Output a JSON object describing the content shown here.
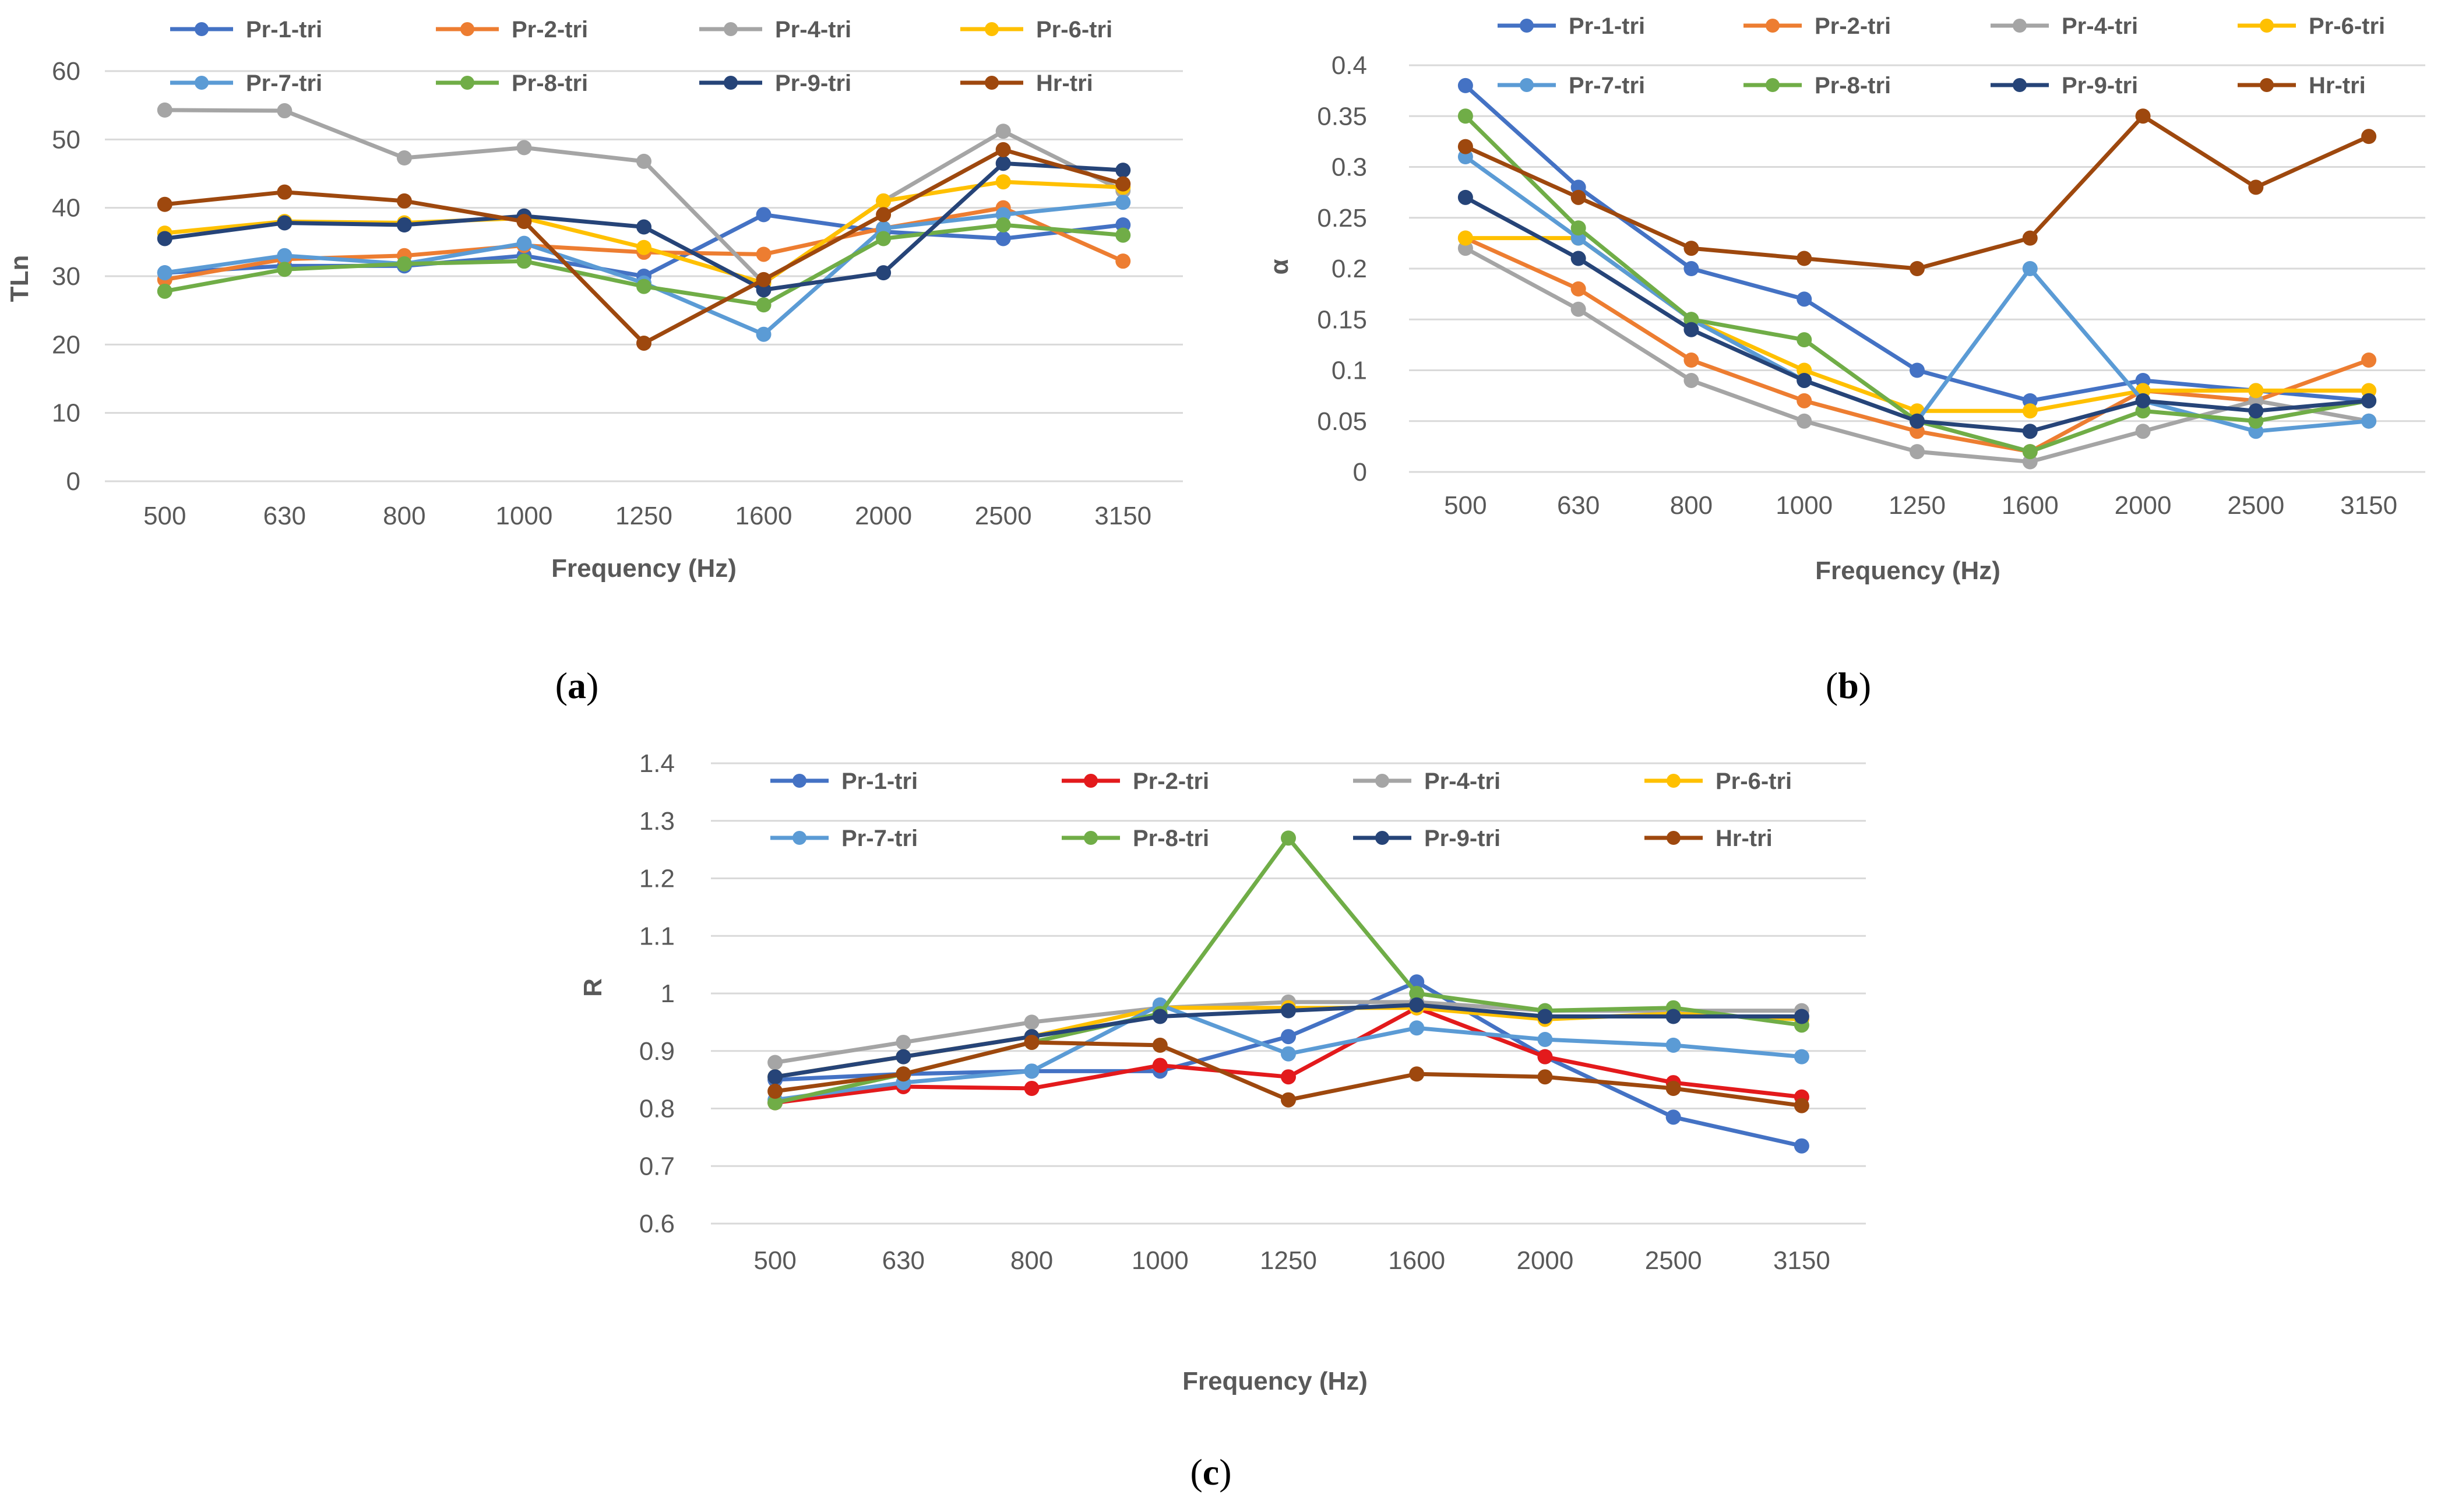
{
  "chart_data": [
    {
      "type": "line",
      "panel_label": "(a)",
      "panel_letter": "a",
      "categories": [
        "500",
        "630",
        "800",
        "1000",
        "1250",
        "1600",
        "2000",
        "2500",
        "3150"
      ],
      "xlabel": "Frequency (Hz)",
      "ylabel": "TLn",
      "ylim": [
        0,
        60
      ],
      "yticks": [
        "0",
        "10",
        "20",
        "30",
        "40",
        "50",
        "60"
      ],
      "grid": true,
      "legend": "top",
      "series": [
        {
          "name": "Pr-1-tri",
          "color": "#4472c4",
          "values": [
            30.5,
            31.5,
            31.5,
            33,
            30,
            39,
            36.5,
            35.5,
            37.5
          ]
        },
        {
          "name": "Pr-2-tri",
          "color": "#ed7d31",
          "values": [
            29.5,
            32.5,
            33,
            34.5,
            33.5,
            33.2,
            37,
            40,
            32.2
          ]
        },
        {
          "name": "Pr-4-tri",
          "color": "#a5a5a5",
          "values": [
            54.3,
            54.2,
            47.3,
            48.8,
            46.8,
            29,
            41,
            51.2,
            42.5
          ]
        },
        {
          "name": "Pr-6-tri",
          "color": "#ffc000",
          "values": [
            36.3,
            38,
            37.8,
            38.5,
            34.2,
            29,
            41,
            43.8,
            43
          ]
        },
        {
          "name": "Pr-7-tri",
          "color": "#5b9bd5",
          "values": [
            30.5,
            33,
            31.8,
            34.8,
            29,
            21.5,
            37,
            39,
            40.8
          ]
        },
        {
          "name": "Pr-8-tri",
          "color": "#70ad47",
          "values": [
            27.8,
            31,
            31.8,
            32.2,
            28.5,
            25.8,
            35.5,
            37.5,
            36
          ]
        },
        {
          "name": "Pr-9-tri",
          "color": "#264478",
          "values": [
            35.5,
            37.8,
            37.5,
            38.8,
            37.2,
            28,
            30.5,
            46.5,
            45.5
          ]
        },
        {
          "name": "Hr-tri",
          "color": "#9e480e",
          "values": [
            40.5,
            42.3,
            41,
            38,
            20.2,
            29.5,
            39,
            48.5,
            43.5
          ]
        }
      ]
    },
    {
      "type": "line",
      "panel_label": "(b)",
      "panel_letter": "b",
      "categories": [
        "500",
        "630",
        "800",
        "1000",
        "1250",
        "1600",
        "2000",
        "2500",
        "3150"
      ],
      "xlabel": "Frequency (Hz)",
      "ylabel": "α",
      "ylim": [
        0,
        0.4
      ],
      "yticks": [
        "0",
        "0.05",
        "0.1",
        "0.15",
        "0.2",
        "0.25",
        "0.3",
        "0.35",
        "0.4"
      ],
      "grid": true,
      "legend": "top",
      "series": [
        {
          "name": "Pr-1-tri",
          "color": "#4472c4",
          "values": [
            0.38,
            0.28,
            0.2,
            0.17,
            0.1,
            0.07,
            0.09,
            0.08,
            0.07
          ]
        },
        {
          "name": "Pr-2-tri",
          "color": "#ed7d31",
          "values": [
            0.23,
            0.18,
            0.11,
            0.07,
            0.04,
            0.02,
            0.08,
            0.07,
            0.11
          ]
        },
        {
          "name": "Pr-4-tri",
          "color": "#a5a5a5",
          "values": [
            0.22,
            0.16,
            0.09,
            0.05,
            0.02,
            0.01,
            0.04,
            0.07,
            0.05
          ]
        },
        {
          "name": "Pr-6-tri",
          "color": "#ffc000",
          "values": [
            0.23,
            0.23,
            0.15,
            0.1,
            0.06,
            0.06,
            0.08,
            0.08,
            0.08
          ]
        },
        {
          "name": "Pr-7-tri",
          "color": "#5b9bd5",
          "values": [
            0.31,
            0.23,
            0.15,
            0.09,
            0.05,
            0.2,
            0.07,
            0.04,
            0.05
          ]
        },
        {
          "name": "Pr-8-tri",
          "color": "#70ad47",
          "values": [
            0.35,
            0.24,
            0.15,
            0.13,
            0.05,
            0.02,
            0.06,
            0.05,
            0.07
          ]
        },
        {
          "name": "Pr-9-tri",
          "color": "#264478",
          "values": [
            0.27,
            0.21,
            0.14,
            0.09,
            0.05,
            0.04,
            0.07,
            0.06,
            0.07
          ]
        },
        {
          "name": "Hr-tri",
          "color": "#9e480e",
          "values": [
            0.32,
            0.27,
            0.22,
            0.21,
            0.2,
            0.23,
            0.35,
            0.28,
            0.33
          ]
        }
      ]
    },
    {
      "type": "line",
      "panel_label": "(c)",
      "panel_letter": "c",
      "categories": [
        "500",
        "630",
        "800",
        "1000",
        "1250",
        "1600",
        "2000",
        "2500",
        "3150"
      ],
      "xlabel": "Frequency (Hz)",
      "ylabel": "R",
      "ylim": [
        0.6,
        1.4
      ],
      "yticks": [
        "0.6",
        "0.7",
        "0.8",
        "0.9",
        "1",
        "1.1",
        "1.2",
        "1.3",
        "1.4"
      ],
      "grid": true,
      "legend": "top",
      "series": [
        {
          "name": "Pr-1-tri",
          "color": "#4472c4",
          "values": [
            0.85,
            0.86,
            0.865,
            0.865,
            0.925,
            1.02,
            0.89,
            0.785,
            0.735
          ]
        },
        {
          "name": "Pr-2-tri",
          "color": "#e31a1c",
          "values": [
            0.81,
            0.838,
            0.835,
            0.875,
            0.855,
            0.975,
            0.89,
            0.845,
            0.82
          ]
        },
        {
          "name": "Pr-4-tri",
          "color": "#a5a5a5",
          "values": [
            0.88,
            0.915,
            0.95,
            0.975,
            0.985,
            0.985,
            0.97,
            0.97,
            0.97
          ]
        },
        {
          "name": "Pr-6-tri",
          "color": "#ffc000",
          "values": [
            0.855,
            0.89,
            0.925,
            0.975,
            0.975,
            0.975,
            0.955,
            0.965,
            0.955
          ]
        },
        {
          "name": "Pr-7-tri",
          "color": "#5b9bd5",
          "values": [
            0.815,
            0.845,
            0.865,
            0.98,
            0.895,
            0.94,
            0.92,
            0.91,
            0.89
          ]
        },
        {
          "name": "Pr-8-tri",
          "color": "#70ad47",
          "values": [
            0.81,
            0.86,
            0.915,
            0.965,
            1.27,
            1.0,
            0.97,
            0.975,
            0.945
          ]
        },
        {
          "name": "Pr-9-tri",
          "color": "#264478",
          "values": [
            0.855,
            0.89,
            0.925,
            0.96,
            0.97,
            0.98,
            0.96,
            0.96,
            0.96
          ]
        },
        {
          "name": "Hr-tri",
          "color": "#9e480e",
          "values": [
            0.83,
            0.86,
            0.915,
            0.91,
            0.815,
            0.86,
            0.855,
            0.835,
            0.805
          ]
        }
      ]
    }
  ]
}
